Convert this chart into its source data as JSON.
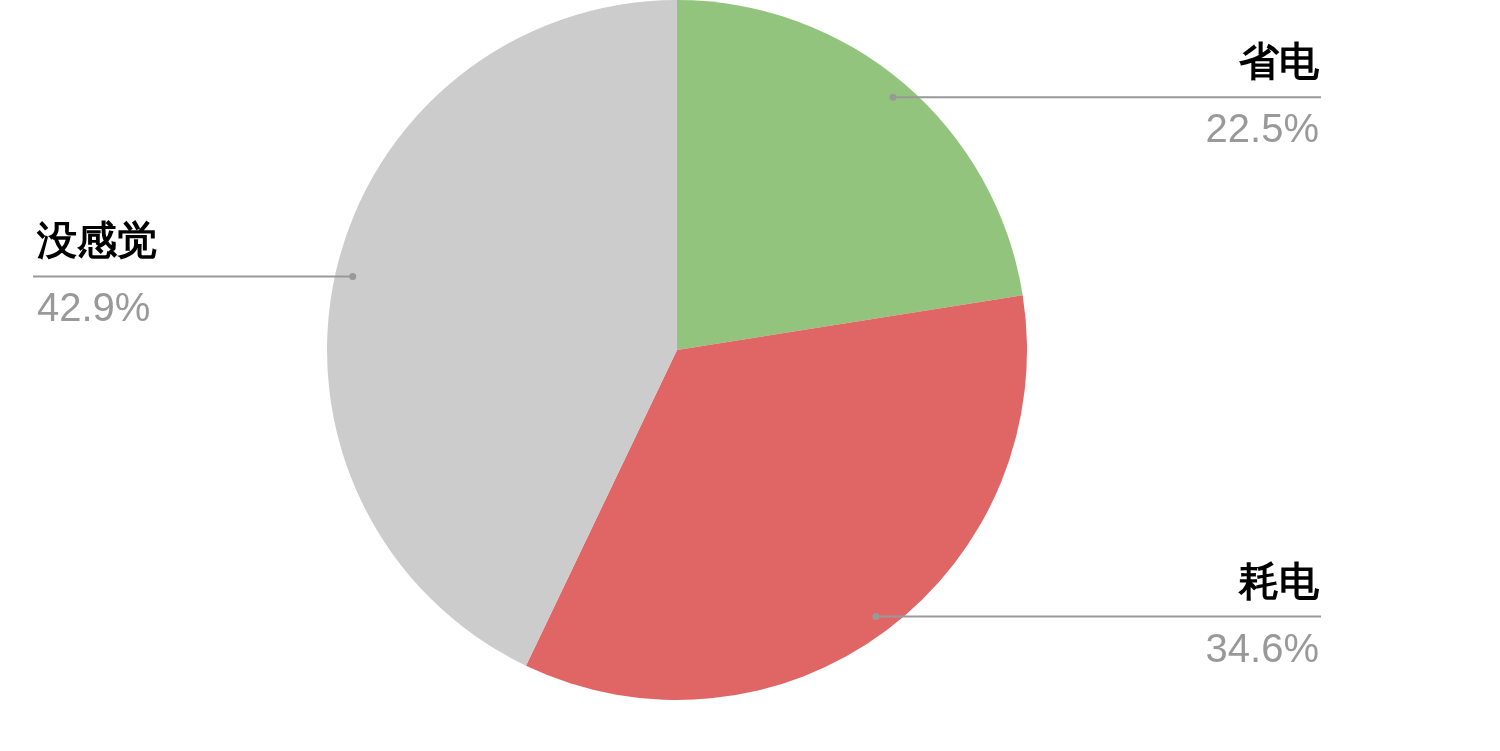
{
  "chart_data": {
    "type": "pie",
    "categories": [
      "省电",
      "耗电",
      "没感觉"
    ],
    "values": [
      22.5,
      34.6,
      42.9
    ],
    "colors": [
      "#93c47d",
      "#e06666",
      "#cccccc"
    ],
    "value_labels": [
      "22.5%",
      "34.6%",
      "42.9%"
    ]
  }
}
